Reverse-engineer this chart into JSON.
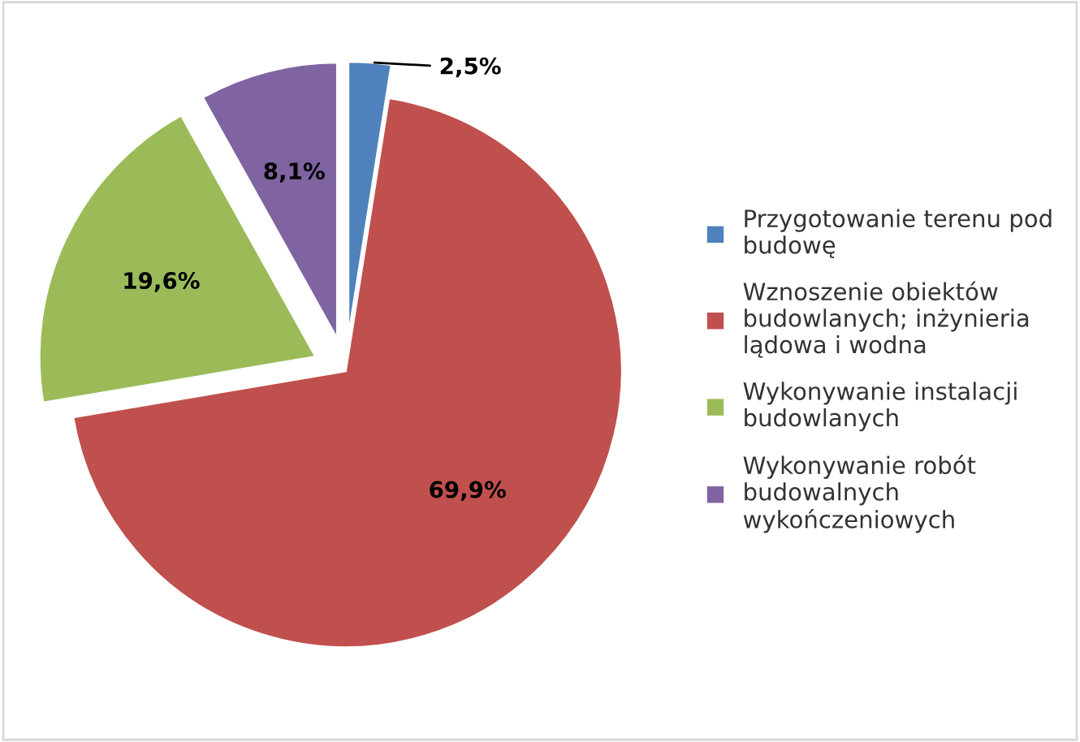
{
  "chart_data": {
    "type": "pie",
    "categories": [
      "Przygotowanie terenu pod budowę",
      "Wznoszenie obiektów budowlanych; inżynieria lądowa i wodna",
      "Wykonywanie instalacji budowlanych",
      "Wykonywanie robót budowalnych wykończeniowych"
    ],
    "values": [
      2.5,
      69.9,
      19.6,
      8.1
    ],
    "colors": [
      "#4f81bd",
      "#c0504d",
      "#9bbb59",
      "#8064a2"
    ],
    "value_labels": [
      "2,5%",
      "69,9%",
      "19,6%",
      "8,1%"
    ],
    "legend": "right"
  }
}
